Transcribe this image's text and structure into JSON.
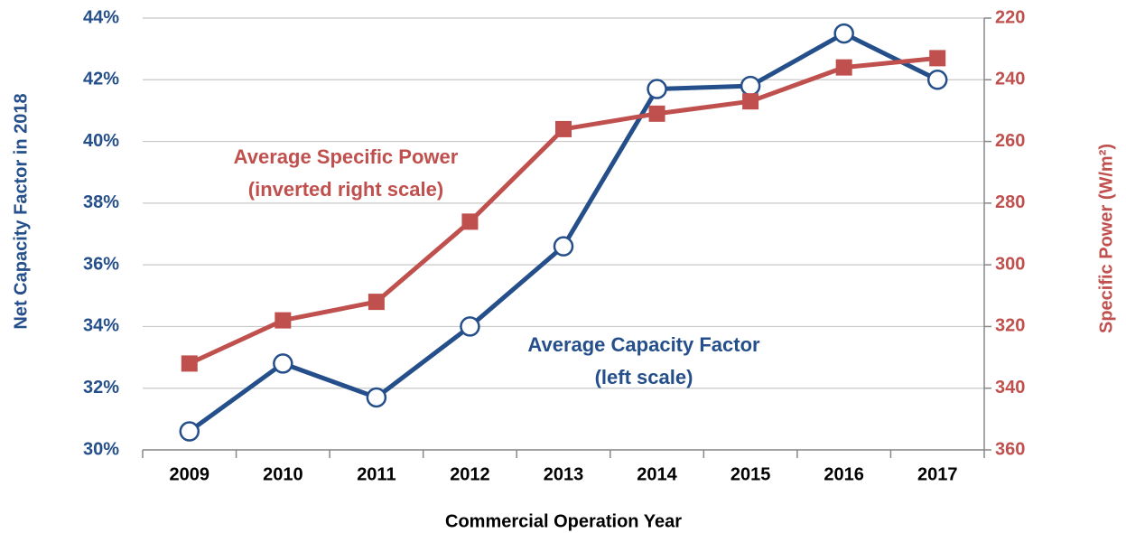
{
  "chart_data": {
    "type": "line",
    "x_label": "Commercial Operation Year",
    "y_label": "Net Capacity Factor in 2018",
    "y2_label": "Specific Power (W/m²)",
    "categories": [
      "2009",
      "2010",
      "2011",
      "2012",
      "2013",
      "2014",
      "2015",
      "2016",
      "2017"
    ],
    "series": [
      {
        "color": "#254f8a",
        "values": [
          30.6,
          32.8,
          31.7,
          34.0,
          36.6,
          41.7,
          41.8,
          43.5,
          42.0
        ]
      },
      {
        "color": "#c0504d",
        "axis": "y2",
        "values": [
          332,
          318,
          312,
          286,
          256,
          251,
          247,
          236,
          233
        ]
      }
    ],
    "annotations": [
      {
        "lines": [
          "Average Specific Power",
          "(inverted right scale)"
        ],
        "color": "#c0504d"
      },
      {
        "lines": [
          "Average Capacity Factor",
          "(left scale)"
        ],
        "color": "#254f8a"
      }
    ],
    "ylim": [
      30,
      44
    ],
    "yticks": [
      {
        "value": 30,
        "label": "30%"
      },
      {
        "value": 32,
        "label": "32%"
      },
      {
        "value": 34,
        "label": "34%"
      },
      {
        "value": 36,
        "label": "36%"
      },
      {
        "value": 38,
        "label": "38%"
      },
      {
        "value": 40,
        "label": "40%"
      },
      {
        "value": 42,
        "label": "42%"
      },
      {
        "value": 44,
        "label": "44%"
      }
    ],
    "y2lim": [
      360,
      220
    ],
    "y2ticks": [
      360,
      340,
      320,
      300,
      280,
      260,
      240,
      220
    ],
    "grid": true
  }
}
